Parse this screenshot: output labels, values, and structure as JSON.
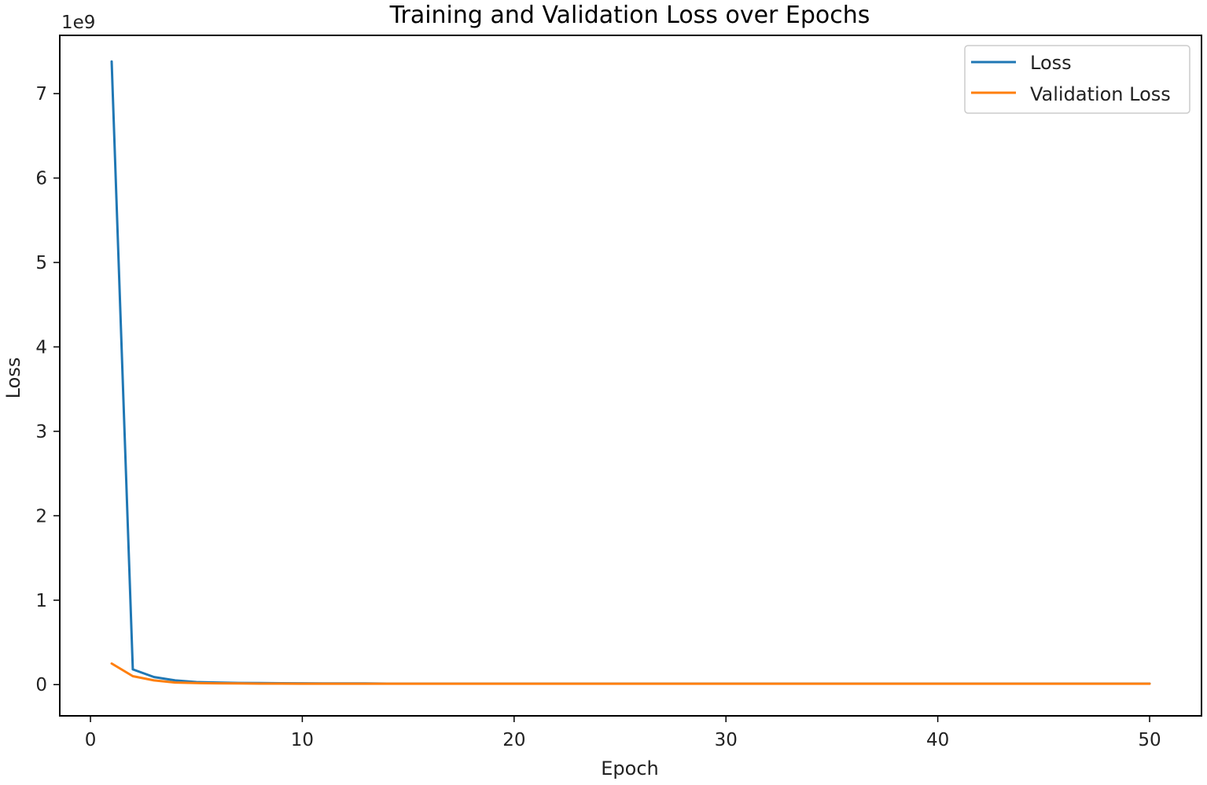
{
  "chart_data": {
    "type": "line",
    "title": "Training and Validation Loss over Epochs",
    "xlabel": "Epoch",
    "ylabel": "Loss",
    "y_offset_text": "1e9",
    "xlim": [
      -1.45,
      52.45
    ],
    "ylim": [
      -0.37,
      7.69
    ],
    "xticks": [
      0,
      10,
      20,
      30,
      40,
      50
    ],
    "yticks": [
      0,
      1,
      2,
      3,
      4,
      5,
      6,
      7
    ],
    "grid": false,
    "legend_position": "top-right",
    "x": [
      1,
      2,
      3,
      4,
      5,
      6,
      7,
      8,
      9,
      10,
      11,
      12,
      13,
      14,
      15,
      16,
      17,
      18,
      19,
      20,
      21,
      22,
      23,
      24,
      25,
      26,
      27,
      28,
      29,
      30,
      31,
      32,
      33,
      34,
      35,
      36,
      37,
      38,
      39,
      40,
      41,
      42,
      43,
      44,
      45,
      46,
      47,
      48,
      49,
      50
    ],
    "series": [
      {
        "name": "Loss",
        "color": "#1f77b4",
        "values": [
          7.38,
          0.18,
          0.09,
          0.05,
          0.03,
          0.025,
          0.02,
          0.018,
          0.016,
          0.015,
          0.014,
          0.013,
          0.013,
          0.012,
          0.012,
          0.012,
          0.012,
          0.012,
          0.012,
          0.012,
          0.012,
          0.012,
          0.012,
          0.012,
          0.012,
          0.012,
          0.012,
          0.012,
          0.012,
          0.012,
          0.012,
          0.012,
          0.012,
          0.012,
          0.012,
          0.012,
          0.012,
          0.012,
          0.012,
          0.012,
          0.012,
          0.012,
          0.012,
          0.012,
          0.012,
          0.012,
          0.012,
          0.012,
          0.012,
          0.012
        ]
      },
      {
        "name": "Validation Loss",
        "color": "#ff7f0e",
        "values": [
          0.25,
          0.1,
          0.05,
          0.025,
          0.018,
          0.015,
          0.013,
          0.012,
          0.012,
          0.011,
          0.011,
          0.011,
          0.011,
          0.011,
          0.011,
          0.011,
          0.011,
          0.011,
          0.011,
          0.011,
          0.011,
          0.011,
          0.011,
          0.011,
          0.011,
          0.011,
          0.011,
          0.011,
          0.011,
          0.011,
          0.011,
          0.011,
          0.011,
          0.011,
          0.011,
          0.011,
          0.011,
          0.011,
          0.011,
          0.011,
          0.011,
          0.011,
          0.011,
          0.011,
          0.011,
          0.011,
          0.011,
          0.011,
          0.011,
          0.011
        ]
      }
    ]
  }
}
